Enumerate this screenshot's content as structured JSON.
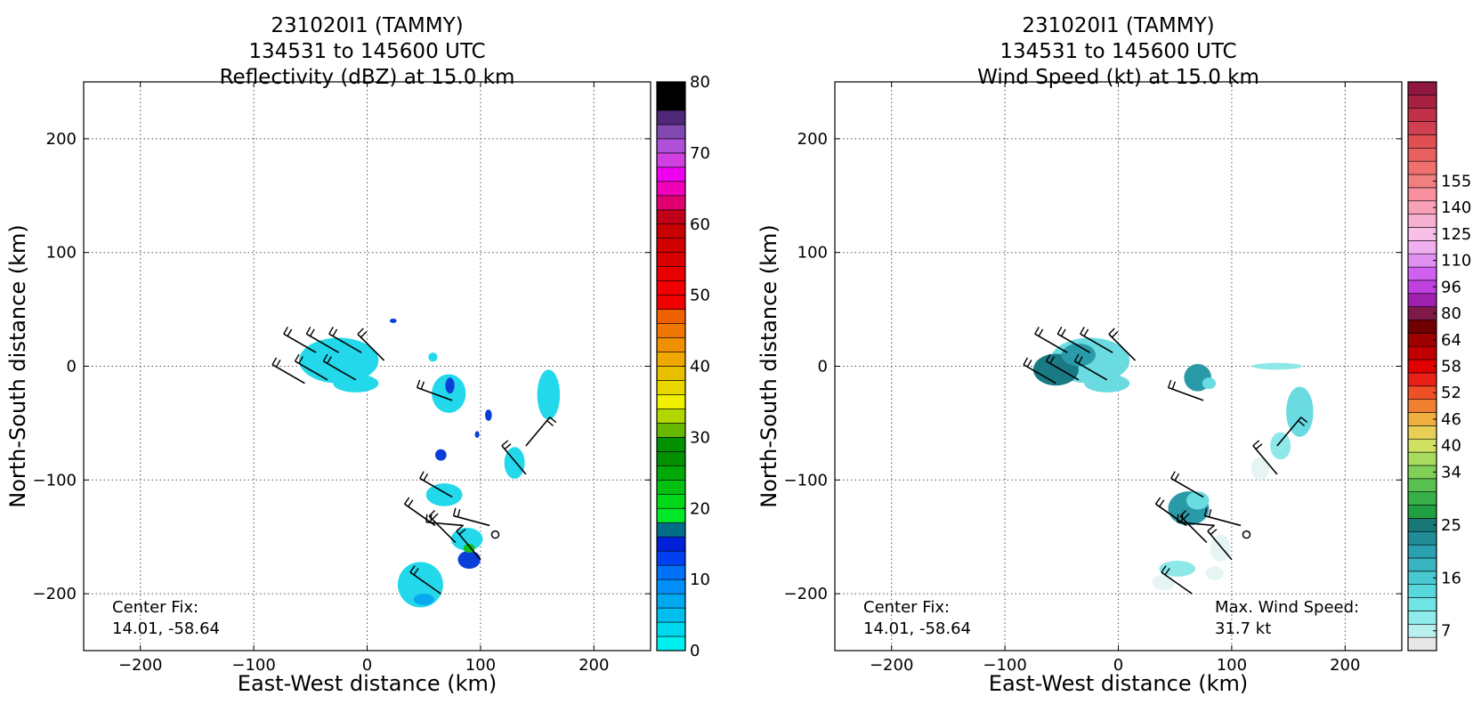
{
  "chart_data": [
    {
      "type": "heatmap",
      "title_lines": [
        "231020I1 (TAMMY)",
        "134531 to 145600 UTC",
        "Reflectivity (dBZ) at 15.0 km"
      ],
      "xlabel": "East-West distance (km)",
      "ylabel": "North-South distance (km)",
      "xlim": [
        -250,
        250
      ],
      "ylim": [
        -250,
        250
      ],
      "xticks": [
        -200,
        -100,
        0,
        100,
        200
      ],
      "yticks": [
        200,
        100,
        0,
        -100,
        -200
      ],
      "grid": true,
      "annotations": [
        {
          "lines": [
            "Center Fix:",
            "14.01, -58.64"
          ],
          "placement": "bottom-left"
        }
      ],
      "colorbar": {
        "range": [
          0,
          80
        ],
        "ticks": [
          0,
          10,
          20,
          30,
          40,
          50,
          60,
          70,
          80
        ],
        "colors": [
          "#00f0f0",
          "#00d8ee",
          "#00bfee",
          "#00a8f0",
          "#0090f8",
          "#0070f8",
          "#0040f0",
          "#0020d8",
          "#006e88",
          "#00e828",
          "#00d818",
          "#00c010",
          "#00a808",
          "#009000",
          "#009000",
          "#68b800",
          "#b0d800",
          "#f0f000",
          "#e8d800",
          "#e8c000",
          "#f0a800",
          "#f09000",
          "#f07800",
          "#f06000",
          "#f00000",
          "#f00000",
          "#e80000",
          "#d80000",
          "#d00000",
          "#c80000",
          "#c00018",
          "#e00070",
          "#f000b8",
          "#f000f0",
          "#d040e0",
          "#b050d8",
          "#8048b0",
          "#502878",
          "#000000",
          "#000000"
        ]
      },
      "field_colors": {
        "light": "#22d8ea",
        "mid": "#0aa8f0",
        "dark": "#0a3ed8",
        "green": "#10c020",
        "teal": "#2a7f8c"
      },
      "regions": [
        {
          "shape": "ellipse",
          "x": -25,
          "y": 5,
          "rx": 35,
          "ry": 20,
          "tone": "light"
        },
        {
          "shape": "ellipse",
          "x": -10,
          "y": -15,
          "rx": 20,
          "ry": 8,
          "tone": "light"
        },
        {
          "shape": "ellipse",
          "x": 72,
          "y": -24,
          "rx": 15,
          "ry": 17,
          "tone": "light"
        },
        {
          "shape": "ellipse",
          "x": 73,
          "y": -17,
          "rx": 4,
          "ry": 7,
          "tone": "dark"
        },
        {
          "shape": "ellipse",
          "x": 160,
          "y": -25,
          "rx": 10,
          "ry": 22,
          "tone": "light"
        },
        {
          "shape": "ellipse",
          "x": 130,
          "y": -85,
          "rx": 9,
          "ry": 14,
          "tone": "light"
        },
        {
          "shape": "ellipse",
          "x": 68,
          "y": -113,
          "rx": 16,
          "ry": 10,
          "tone": "light"
        },
        {
          "shape": "ellipse",
          "x": 88,
          "y": -152,
          "rx": 14,
          "ry": 10,
          "tone": "light"
        },
        {
          "shape": "ellipse",
          "x": 90,
          "y": -170,
          "rx": 10,
          "ry": 8,
          "tone": "dark"
        },
        {
          "shape": "ellipse",
          "x": 90,
          "y": -160,
          "rx": 5,
          "ry": 4,
          "tone": "green"
        },
        {
          "shape": "ellipse",
          "x": 47,
          "y": -192,
          "rx": 20,
          "ry": 20,
          "tone": "light"
        },
        {
          "shape": "ellipse",
          "x": 50,
          "y": -205,
          "rx": 9,
          "ry": 5,
          "tone": "mid"
        },
        {
          "shape": "ellipse",
          "x": 107,
          "y": -43,
          "rx": 3,
          "ry": 5,
          "tone": "dark"
        },
        {
          "shape": "ellipse",
          "x": 65,
          "y": -78,
          "rx": 5,
          "ry": 5,
          "tone": "dark"
        },
        {
          "shape": "ellipse",
          "x": 97,
          "y": -60,
          "rx": 2,
          "ry": 3,
          "tone": "dark"
        },
        {
          "shape": "ellipse",
          "x": 58,
          "y": 8,
          "rx": 4,
          "ry": 4,
          "tone": "light"
        },
        {
          "shape": "ellipse",
          "x": 23,
          "y": 40,
          "rx": 3,
          "ry": 2,
          "tone": "dark"
        }
      ],
      "barbs": [
        {
          "x": -45,
          "y": 12,
          "dir": 300
        },
        {
          "x": -25,
          "y": 12,
          "dir": 300
        },
        {
          "x": -5,
          "y": 12,
          "dir": 300
        },
        {
          "x": 15,
          "y": 5,
          "dir": 315
        },
        {
          "x": -55,
          "y": -15,
          "dir": 300
        },
        {
          "x": -35,
          "y": -12,
          "dir": 300
        },
        {
          "x": -10,
          "y": -12,
          "dir": 300
        },
        {
          "x": 75,
          "y": -30,
          "dir": 290
        },
        {
          "x": 140,
          "y": -70,
          "dir": 40
        },
        {
          "x": 140,
          "y": -95,
          "dir": 320
        },
        {
          "x": 75,
          "y": -115,
          "dir": 300
        },
        {
          "x": 60,
          "y": -140,
          "dir": 305
        },
        {
          "x": 85,
          "y": -140,
          "dir": 275
        },
        {
          "x": 108,
          "y": -140,
          "dir": 285
        },
        {
          "x": 78,
          "y": -155,
          "dir": 315
        },
        {
          "x": 100,
          "y": -170,
          "dir": 320
        },
        {
          "x": 65,
          "y": -200,
          "dir": 305
        }
      ],
      "markers": [
        {
          "x": 113,
          "y": -148
        }
      ]
    },
    {
      "type": "heatmap",
      "title_lines": [
        "231020I1 (TAMMY)",
        "134531 to 145600 UTC",
        "Wind Speed (kt) at 15.0 km"
      ],
      "xlabel": "East-West distance (km)",
      "ylabel": "North-South distance (km)",
      "xlim": [
        -250,
        250
      ],
      "ylim": [
        -250,
        250
      ],
      "xticks": [
        -200,
        -100,
        0,
        100,
        200
      ],
      "yticks": [
        200,
        100,
        0,
        -100,
        -200
      ],
      "grid": true,
      "annotations": [
        {
          "lines": [
            "Center Fix:",
            "14.01, -58.64"
          ],
          "placement": "bottom-left"
        },
        {
          "lines": [
            "Max. Wind Speed:",
            "31.7 kt"
          ],
          "placement": "bottom-right"
        }
      ],
      "colorbar": {
        "range": [
          0,
          163
        ],
        "ticks": [
          7,
          16,
          25,
          34,
          40,
          46,
          52,
          58,
          64,
          80,
          96,
          110,
          125,
          140,
          155
        ],
        "tick_positions": [
          1,
          5,
          9,
          13,
          15,
          17,
          19,
          21,
          23,
          25,
          27,
          29,
          31,
          33,
          35
        ],
        "colors": [
          "#e8e8e8",
          "#b8f0f0",
          "#90ecec",
          "#70e4e4",
          "#58d8dc",
          "#48c8d0",
          "#38b4c0",
          "#2aa0b0",
          "#208c98",
          "#187878",
          "#20a040",
          "#38b048",
          "#58c050",
          "#80d058",
          "#a8dc60",
          "#d0e060",
          "#e8d058",
          "#f0b040",
          "#f08030",
          "#f05028",
          "#e82018",
          "#e00000",
          "#c00000",
          "#a00000",
          "#700000",
          "#801848",
          "#a020b0",
          "#c040e0",
          "#d060f0",
          "#e090f0",
          "#f0b0f0",
          "#f8c0e8",
          "#f8b0d0",
          "#f8a0b8",
          "#f890a0",
          "#f08080",
          "#f07070",
          "#e86060",
          "#e05050",
          "#d04050",
          "#c03048",
          "#a82040",
          "#901840"
        ]
      },
      "field_colors": {
        "light": "#6adbe0",
        "mid": "#2a9aa8",
        "dark": "#1a7a84",
        "pale": "#e6f4f4",
        "aqua": "#8ee8e8"
      },
      "regions": [
        {
          "shape": "ellipse",
          "x": -25,
          "y": 5,
          "rx": 35,
          "ry": 20,
          "tone": "light"
        },
        {
          "shape": "ellipse",
          "x": -55,
          "y": -3,
          "rx": 20,
          "ry": 14,
          "tone": "dark"
        },
        {
          "shape": "ellipse",
          "x": -35,
          "y": 10,
          "rx": 15,
          "ry": 10,
          "tone": "mid"
        },
        {
          "shape": "ellipse",
          "x": -10,
          "y": -15,
          "rx": 20,
          "ry": 8,
          "tone": "light"
        },
        {
          "shape": "ellipse",
          "x": 70,
          "y": -10,
          "rx": 12,
          "ry": 12,
          "tone": "mid"
        },
        {
          "shape": "ellipse",
          "x": 80,
          "y": -15,
          "rx": 6,
          "ry": 5,
          "tone": "light"
        },
        {
          "shape": "ellipse",
          "x": 160,
          "y": -40,
          "rx": 12,
          "ry": 22,
          "tone": "light"
        },
        {
          "shape": "ellipse",
          "x": 140,
          "y": 0,
          "rx": 22,
          "ry": 3,
          "tone": "aqua"
        },
        {
          "shape": "ellipse",
          "x": 143,
          "y": -70,
          "rx": 9,
          "ry": 12,
          "tone": "aqua"
        },
        {
          "shape": "ellipse",
          "x": 125,
          "y": -90,
          "rx": 8,
          "ry": 10,
          "tone": "pale"
        },
        {
          "shape": "ellipse",
          "x": 62,
          "y": -125,
          "rx": 18,
          "ry": 15,
          "tone": "mid"
        },
        {
          "shape": "ellipse",
          "x": 70,
          "y": -118,
          "rx": 10,
          "ry": 8,
          "tone": "light"
        },
        {
          "shape": "ellipse",
          "x": 90,
          "y": -160,
          "rx": 9,
          "ry": 12,
          "tone": "pale"
        },
        {
          "shape": "ellipse",
          "x": 52,
          "y": -178,
          "rx": 16,
          "ry": 7,
          "tone": "aqua"
        },
        {
          "shape": "ellipse",
          "x": 40,
          "y": -190,
          "rx": 10,
          "ry": 7,
          "tone": "pale"
        },
        {
          "shape": "ellipse",
          "x": 85,
          "y": -182,
          "rx": 8,
          "ry": 6,
          "tone": "pale"
        }
      ],
      "barbs": [
        {
          "x": -45,
          "y": 12,
          "dir": 300
        },
        {
          "x": -25,
          "y": 12,
          "dir": 300
        },
        {
          "x": -5,
          "y": 12,
          "dir": 300
        },
        {
          "x": 15,
          "y": 5,
          "dir": 315
        },
        {
          "x": -55,
          "y": -15,
          "dir": 300
        },
        {
          "x": -35,
          "y": -12,
          "dir": 300
        },
        {
          "x": -10,
          "y": -12,
          "dir": 300
        },
        {
          "x": 75,
          "y": -30,
          "dir": 290
        },
        {
          "x": 140,
          "y": -70,
          "dir": 40
        },
        {
          "x": 140,
          "y": -95,
          "dir": 320
        },
        {
          "x": 75,
          "y": -115,
          "dir": 300
        },
        {
          "x": 60,
          "y": -140,
          "dir": 305
        },
        {
          "x": 85,
          "y": -140,
          "dir": 275
        },
        {
          "x": 108,
          "y": -140,
          "dir": 285
        },
        {
          "x": 78,
          "y": -155,
          "dir": 315
        },
        {
          "x": 100,
          "y": -170,
          "dir": 320
        },
        {
          "x": 65,
          "y": -200,
          "dir": 305
        }
      ],
      "markers": [
        {
          "x": 113,
          "y": -148
        }
      ]
    }
  ]
}
